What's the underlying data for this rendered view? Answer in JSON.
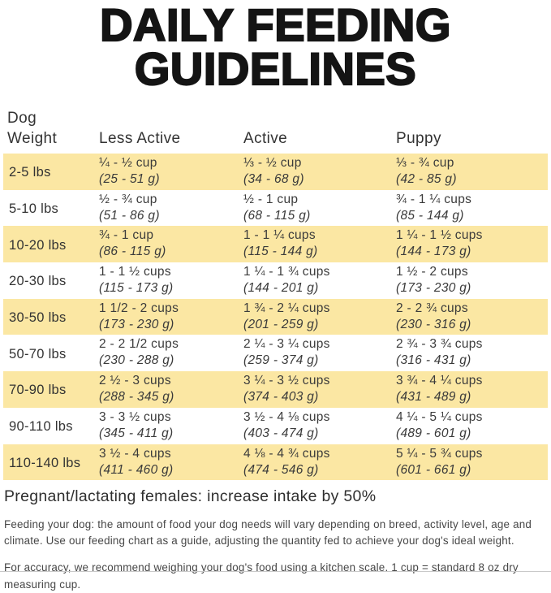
{
  "title": {
    "line1": "DAILY FEEDING",
    "line2": "GUIDELINES"
  },
  "table": {
    "headers": {
      "weight_line1": "Dog",
      "weight_line2": "Weight",
      "less_active": "Less Active",
      "active": "Active",
      "puppy": "Puppy"
    },
    "rows": [
      {
        "weight": "2-5 lbs",
        "less_active_cups": "¼ - ½ cup",
        "less_active_grams": "(25 - 51 g)",
        "active_cups": "⅓ - ½ cup",
        "active_grams": "(34 - 68 g)",
        "puppy_cups": "⅓ - ¾ cup",
        "puppy_grams": "(42 - 85 g)"
      },
      {
        "weight": "5-10 lbs",
        "less_active_cups": "½ - ¾ cup",
        "less_active_grams": "(51 - 86 g)",
        "active_cups": "½ - 1 cup",
        "active_grams": "(68 - 115 g)",
        "puppy_cups": "¾ - 1 ¼ cups",
        "puppy_grams": "(85 - 144 g)"
      },
      {
        "weight": "10-20 lbs",
        "less_active_cups": "¾ - 1 cup",
        "less_active_grams": "(86 - 115 g)",
        "active_cups": "1 - 1 ¼ cups",
        "active_grams": "(115 - 144 g)",
        "puppy_cups": "1 ¼ - 1 ½ cups",
        "puppy_grams": "(144 - 173 g)"
      },
      {
        "weight": "20-30 lbs",
        "less_active_cups": "1 - 1 ½ cups",
        "less_active_grams": "(115 - 173 g)",
        "active_cups": "1 ¼ - 1 ¾ cups",
        "active_grams": "(144 - 201 g)",
        "puppy_cups": "1 ½ - 2 cups",
        "puppy_grams": "(173 - 230 g)"
      },
      {
        "weight": "30-50 lbs",
        "less_active_cups": "1 1/2 - 2 cups",
        "less_active_grams": "(173 - 230 g)",
        "active_cups": "1 ¾ - 2 ¼ cups",
        "active_grams": "(201 - 259 g)",
        "puppy_cups": "2 - 2 ¾ cups",
        "puppy_grams": "(230 - 316 g)"
      },
      {
        "weight": "50-70 lbs",
        "less_active_cups": "2 - 2 1/2 cups",
        "less_active_grams": "(230 - 288 g)",
        "active_cups": "2 ¼ - 3 ¼ cups",
        "active_grams": "(259 - 374 g)",
        "puppy_cups": "2 ¾ - 3 ¾ cups",
        "puppy_grams": "(316 - 431 g)"
      },
      {
        "weight": "70-90 lbs",
        "less_active_cups": "2 ½ - 3 cups",
        "less_active_grams": "(288 - 345 g)",
        "active_cups": "3 ¼ - 3 ½ cups",
        "active_grams": "(374 - 403 g)",
        "puppy_cups": "3 ¾ - 4 ¼ cups",
        "puppy_grams": "(431 - 489 g)"
      },
      {
        "weight": "90-110 lbs",
        "less_active_cups": "3 - 3 ½ cups",
        "less_active_grams": "(345 - 411 g)",
        "active_cups": "3 ½ - 4 ⅛ cups",
        "active_grams": "(403 - 474 g)",
        "puppy_cups": "4 ¼ - 5 ¼ cups",
        "puppy_grams": "(489 - 601 g)"
      },
      {
        "weight": "110-140 lbs",
        "less_active_cups": "3 ½ - 4 cups",
        "less_active_grams": "(411 - 460 g)",
        "active_cups": "4 ⅛ - 4 ¾ cups",
        "active_grams": "(474 - 546 g)",
        "puppy_cups": "5 ¼ - 5 ¾ cups",
        "puppy_grams": "(601 - 661 g)"
      }
    ]
  },
  "notes": {
    "pregnant": "Pregnant/lactating females: increase intake by 50%",
    "feeding": "Feeding your dog: the amount of food your dog needs will vary depending on breed, activity level, age and climate. Use our feeding chart as a guide, adjusting the quantity fed to achieve your dog's ideal weight.",
    "accuracy": "For accuracy, we recommend weighing your dog's food using a kitchen scale. 1 cup = standard 8 oz dry measuring cup."
  },
  "colors": {
    "row_highlight": "#FBE7A3",
    "title_text": "#141414",
    "body_text": "#3b3b3b"
  }
}
